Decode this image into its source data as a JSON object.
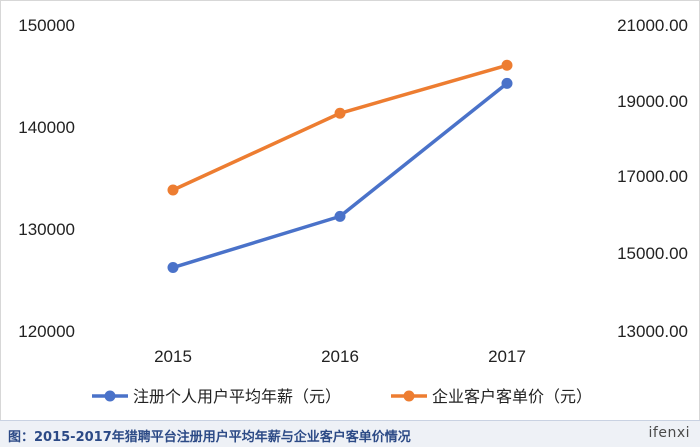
{
  "chart_data": {
    "type": "line",
    "title": "",
    "categories": [
      "2015",
      "2016",
      "2017"
    ],
    "y_left": {
      "ticks": [
        "150000",
        "140000",
        "130000",
        "120000"
      ],
      "range": [
        120000,
        150000
      ]
    },
    "y_right": {
      "ticks": [
        "21000.00",
        "19000.00",
        "17000.00",
        "15000.00",
        "13000.00"
      ],
      "range": [
        13000,
        21000
      ]
    },
    "series": [
      {
        "name": "注册个人用户平均年薪（元）",
        "axis": "left",
        "color": "#4a72c9",
        "values": [
          126300,
          131300,
          144300
        ]
      },
      {
        "name": "企业客户客单价（元）",
        "axis": "right",
        "color": "#ed7d31",
        "values": [
          16700,
          18700,
          19950
        ]
      }
    ],
    "legend_position": "bottom",
    "grid": false
  },
  "caption": "图：2015-2017年猎聘平台注册用户平均年薪与企业客户客单价情况",
  "logo_text": "ifenxi"
}
